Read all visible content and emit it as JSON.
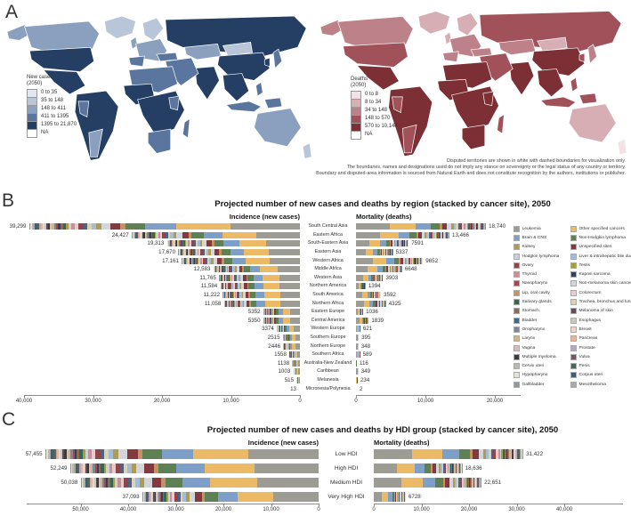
{
  "figure": {
    "panel_a_label": "A",
    "panel_b_label": "B",
    "panel_c_label": "C"
  },
  "maps": {
    "new_cases": {
      "legend_title_line1": "New cases",
      "legend_title_line2": "(2050)",
      "bins": [
        "0 to 35",
        "35 to 148",
        "148 to 411",
        "411 to 1395",
        "1395 to 21,870",
        "NA"
      ],
      "palette": [
        "#e2e6ee",
        "#b9c5d8",
        "#8ba0bf",
        "#5a769e",
        "#243f63",
        "#ffffff"
      ]
    },
    "deaths": {
      "legend_title_line1": "Deaths",
      "legend_title_line2": "(2050)",
      "bins": [
        "0 to 8",
        "8 to 34",
        "34 to 148",
        "148 to 570",
        "570 to 10,144",
        "NA"
      ],
      "palette": [
        "#f2e2e5",
        "#d8aeb5",
        "#bd8289",
        "#a05159",
        "#7c2f35",
        "#ffffff"
      ]
    },
    "footnote": [
      "Disputed territories are shown in white with dashed boundaries for visualization only.",
      "The boundaries, names and designations used do not imply any stance on sovereignty or the legal status of any country or territory.",
      "Boundary and disputed-area information is sourced from Natural Earth and does not constitute recognition by the authors, institutions or publisher."
    ]
  },
  "cancer_sites": [
    {
      "label": "Leukemia",
      "color": "#9c9c94"
    },
    {
      "label": "Brain & CNS",
      "color": "#7e9fc7"
    },
    {
      "label": "Kidney",
      "color": "#ad9c52"
    },
    {
      "label": "Hodgkin lymphoma",
      "color": "#ccd1d8"
    },
    {
      "label": "Ovary",
      "color": "#93444b"
    },
    {
      "label": "Thyroid",
      "color": "#c99099"
    },
    {
      "label": "Nasopharynx",
      "color": "#a04a50"
    },
    {
      "label": "Lip, oral cavity",
      "color": "#c6935f"
    },
    {
      "label": "Salivary glands",
      "color": "#39664f"
    },
    {
      "label": "Stomach",
      "color": "#8a6c58"
    },
    {
      "label": "Bladder",
      "color": "#4a6584"
    },
    {
      "label": "Oropharynx",
      "color": "#7d8794"
    },
    {
      "label": "Larynx",
      "color": "#ccb78a"
    },
    {
      "label": "Vagina",
      "color": "#d9bcbe"
    },
    {
      "label": "Multiple myeloma",
      "color": "#3b3b3b"
    },
    {
      "label": "Cervix uteri",
      "color": "#b8bbab"
    },
    {
      "label": "Hypopharynx",
      "color": "#e6e3d5"
    },
    {
      "label": "Gallbladder",
      "color": "#909898"
    },
    {
      "label": "Other specified cancers",
      "color": "#ecba67"
    },
    {
      "label": "Non-Hodgkin lymphoma",
      "color": "#5d8054"
    },
    {
      "label": "Unspecified sites",
      "color": "#84393f"
    },
    {
      "label": "Liver & intrahepatic bile ducts",
      "color": "#a3bdd6"
    },
    {
      "label": "Testis",
      "color": "#a0a046"
    },
    {
      "label": "Kaposi sarcoma",
      "color": "#32425e"
    },
    {
      "label": "Non-melanoma skin cancer",
      "color": "#d2d6da"
    },
    {
      "label": "Colorectum",
      "color": "#e7cbcf"
    },
    {
      "label": "Trachea, bronchus and lung",
      "color": "#dcd2b6"
    },
    {
      "label": "Melanoma of skin",
      "color": "#604e57"
    },
    {
      "label": "Esophagus",
      "color": "#c6cac2"
    },
    {
      "label": "Breast",
      "color": "#ead8c5"
    },
    {
      "label": "Pancreas",
      "color": "#e9b699"
    },
    {
      "label": "Prostate",
      "color": "#b7a4c7"
    },
    {
      "label": "Vulva",
      "color": "#705a66"
    },
    {
      "label": "Penis",
      "color": "#426858"
    },
    {
      "label": "Corpus uteri",
      "color": "#3f5d7b"
    },
    {
      "label": "Mesothelioma",
      "color": "#a8a8a8"
    }
  ],
  "stack_order": [
    0,
    18,
    1,
    19,
    7,
    20,
    24,
    2,
    21,
    26,
    10,
    4,
    25,
    5,
    3,
    22,
    8,
    9,
    23,
    6,
    11,
    12,
    13,
    14,
    27,
    28,
    29,
    30,
    31,
    32,
    33,
    34,
    35,
    15,
    16,
    17
  ],
  "stack_fractions": [
    0.27,
    0.21,
    0.12,
    0.075,
    0.02,
    0.04,
    0.035,
    0.018,
    0.02,
    0.015,
    0.015,
    0.02,
    0.015,
    0.012,
    0.012,
    0.01,
    0.012,
    0.01,
    0.008,
    0.008,
    0.008,
    0.008,
    0.007,
    0.008,
    0.007,
    0.007,
    0.007,
    0.007,
    0.006,
    0.006,
    0.006,
    0.006,
    0.006,
    0.006,
    0.005,
    0.005
  ],
  "chart_data": [
    {
      "type": "choropleth",
      "panel": "A",
      "variable": "New cases (2050)",
      "legend_bins": [
        "0 to 35",
        "35 to 148",
        "148 to 411",
        "411 to 1395",
        "1395 to 21,870",
        "NA"
      ]
    },
    {
      "type": "choropleth",
      "panel": "A",
      "variable": "Deaths (2050)",
      "legend_bins": [
        "0 to 8",
        "8 to 34",
        "34 to 148",
        "148 to 570",
        "570 to 10,144",
        "NA"
      ]
    },
    {
      "type": "bar",
      "subtype": "paired-stacked-horizontal",
      "panel": "B",
      "title": "Projected number of new cases and deaths by region (stacked by cancer site), 2050",
      "left_title": "Incidence (new cases)",
      "right_title": "Mortality (deaths)",
      "categories": [
        "South Central Asia",
        "Eastern Africa",
        "South-Eastern Asia",
        "Eastern Asia",
        "Western Africa",
        "Middle Africa",
        "Western Asia",
        "Northern America",
        "South America",
        "Northern Africa",
        "Eastern Europe",
        "Central America",
        "Western Europe",
        "Southern Europe",
        "Northern Europe",
        "Southern Africa",
        "Australia-New Zealand",
        "Caribbean",
        "Melanesia",
        "Micronesia/Polynesia"
      ],
      "series": [
        {
          "name": "Incidence (new cases)",
          "values": [
            39299,
            24427,
            19313,
            17670,
            17161,
            12583,
            11765,
            11584,
            11222,
            11058,
            5352,
            5350,
            3374,
            2515,
            2446,
            1558,
            1138,
            1003,
            515,
            13
          ],
          "labels": [
            "39,299",
            "24,427",
            "19,313",
            "17,670",
            "17,161",
            "12,583",
            "11,765",
            "11,584",
            "11,222",
            "11,058",
            "5352",
            "5350",
            "3374",
            "2515",
            "2446",
            "1558",
            "1138",
            "1003",
            "515",
            "13"
          ]
        },
        {
          "name": "Mortality (deaths)",
          "values": [
            18740,
            13466,
            7591,
            5337,
            9652,
            6648,
            3903,
            1394,
            3592,
            4325,
            1036,
            1839,
            621,
            395,
            348,
            589,
            116,
            349,
            234,
            2
          ],
          "labels": [
            "18,740",
            "13,466",
            "7591",
            "5337",
            "9652",
            "6648",
            "3903",
            "1394",
            "3592",
            "4325",
            "1036",
            "1839",
            "621",
            "395",
            "348",
            "589",
            "116",
            "349",
            "234",
            "2"
          ]
        }
      ],
      "incidence_axis": {
        "ticks": [
          "40,000",
          "30,000",
          "20,000",
          "10,000",
          "0"
        ],
        "max": 40000
      },
      "mortality_axis": {
        "ticks": [
          "0",
          "10,000",
          "20,000"
        ],
        "max": 20000
      },
      "legend_position": "right",
      "grid": false
    },
    {
      "type": "bar",
      "subtype": "paired-stacked-horizontal",
      "panel": "C",
      "title": "Projected number of new cases and deaths by HDI group (stacked by cancer site), 2050",
      "left_title": "Incidence (new cases)",
      "right_title": "Mortality (deaths)",
      "categories": [
        "Low HDI",
        "High HDI",
        "Medium HDI",
        "Very High HDI"
      ],
      "series": [
        {
          "name": "Incidence (new cases)",
          "values": [
            57455,
            52249,
            50038,
            37093
          ],
          "labels": [
            "57,455",
            "52,249",
            "50,038",
            "37,093"
          ]
        },
        {
          "name": "Mortality (deaths)",
          "values": [
            31422,
            18636,
            22651,
            6728
          ],
          "labels": [
            "31,422",
            "18,636",
            "22,651",
            "6728"
          ]
        }
      ],
      "incidence_axis": {
        "ticks": [
          "50,000",
          "40,000",
          "30,000",
          "20,000",
          "10,000",
          "0"
        ],
        "max": 60000
      },
      "mortality_axis": {
        "ticks": [
          "0",
          "10,000",
          "20,000",
          "30,000",
          "40,000"
        ],
        "max": 40000
      },
      "grid": false
    }
  ]
}
